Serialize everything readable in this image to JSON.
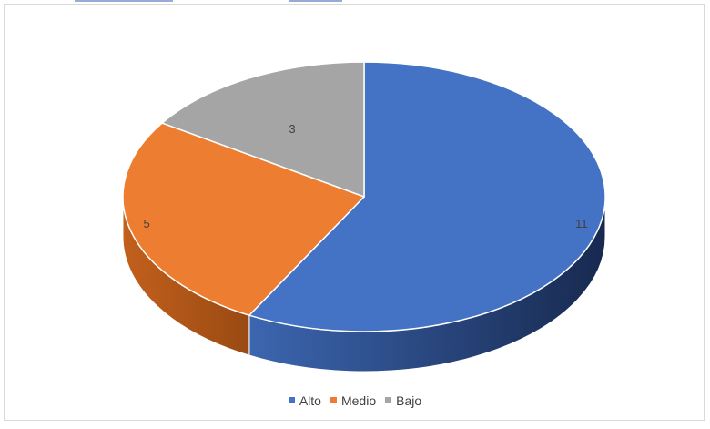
{
  "chart_data": {
    "type": "pie",
    "style": "3d",
    "title": "",
    "categories": [
      "Alto",
      "Medio",
      "Bajo"
    ],
    "values": [
      11,
      5,
      3
    ],
    "colors": [
      "#4472C4",
      "#ED7D31",
      "#A5A5A5"
    ],
    "legend_position": "bottom",
    "data_labels": [
      "11",
      "5",
      "3"
    ]
  }
}
